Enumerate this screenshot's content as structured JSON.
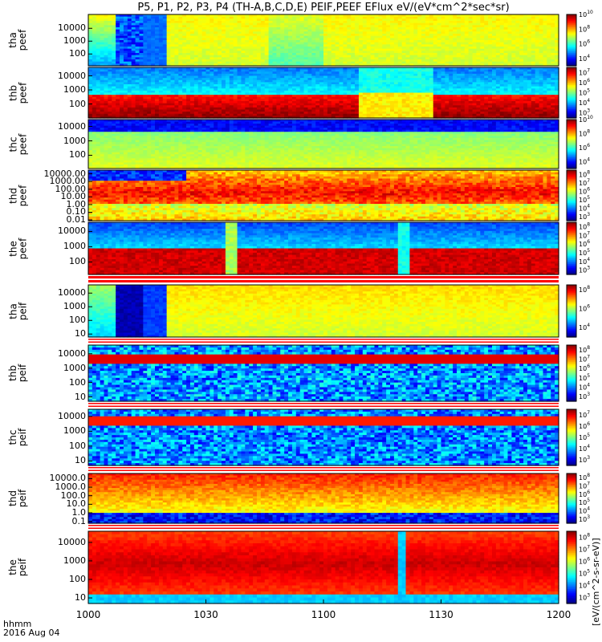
{
  "title": "P5, P1, P2, P3, P4 (TH-A,B,C,D,E) PEIF,PEEF EFlux eV/(eV*cm^2*sec*sr)",
  "colorbar_title": "[eV/(cm^2-s-sr-eV)]",
  "x_axis": {
    "ticks": [
      "1000",
      "1030",
      "1100",
      "1130",
      "1200"
    ],
    "ticks_minutes": [
      0,
      30,
      60,
      90,
      120
    ],
    "label_line1": "hhmm",
    "label_line2": "2016 Aug 04",
    "range_minutes": [
      0,
      120
    ]
  },
  "chart_data": [
    {
      "type": "heatmap",
      "name": "tha peef",
      "label": [
        "tha",
        "peef"
      ],
      "yscale": "log",
      "ytick_labels": [
        "10000",
        "1000",
        "100"
      ],
      "ytick_values": [
        10000,
        1000,
        100
      ],
      "colorbar_ticks": [
        "10^10",
        "10^8",
        "10^6",
        "10^4"
      ],
      "colorbar_log_range": [
        3,
        10
      ]
    },
    {
      "type": "heatmap",
      "name": "thb peef",
      "label": [
        "thb",
        "peef"
      ],
      "yscale": "log",
      "ytick_labels": [
        "10000",
        "1000",
        "100"
      ],
      "ytick_values": [
        10000,
        1000,
        100
      ],
      "colorbar_ticks": [
        "10^7",
        "10^6",
        "10^5",
        "10^4",
        "10^3"
      ],
      "colorbar_log_range": [
        2.5,
        7.5
      ]
    },
    {
      "type": "heatmap",
      "name": "thc peef",
      "label": [
        "thc",
        "peef"
      ],
      "yscale": "log",
      "ytick_labels": [
        "10000",
        "1000",
        "100"
      ],
      "ytick_values": [
        10000,
        1000,
        100
      ],
      "colorbar_ticks": [
        "10^10",
        "10^8",
        "10^6",
        "10^4"
      ],
      "colorbar_log_range": [
        3,
        10
      ]
    },
    {
      "type": "heatmap",
      "name": "thd peef",
      "label": [
        "thd",
        "peef"
      ],
      "yscale": "log",
      "ytick_labels": [
        "10000.00",
        "1000.00",
        "100.00",
        "10.00",
        "1.00",
        "0.10",
        "0.01"
      ],
      "ytick_values": [
        10000,
        1000,
        100,
        10,
        1,
        0.1,
        0.01
      ],
      "colorbar_ticks": [
        "10^8",
        "10^7",
        "10^6",
        "10^5",
        "10^4",
        "10^3"
      ],
      "colorbar_log_range": [
        2.5,
        8.5
      ]
    },
    {
      "type": "heatmap",
      "name": "the peef",
      "label": [
        "the",
        "peef"
      ],
      "yscale": "log",
      "ytick_labels": [
        "10000",
        "1000",
        "100"
      ],
      "ytick_values": [
        10000,
        1000,
        100
      ],
      "colorbar_ticks": [
        "10^8",
        "10^7",
        "10^6",
        "10^5",
        "10^4",
        "10^3"
      ],
      "colorbar_log_range": [
        2.5,
        8.5
      ]
    },
    {
      "type": "heatmap",
      "name": "tha peif",
      "label": [
        "tha",
        "peif"
      ],
      "yscale": "log",
      "ytick_labels": [
        "10000",
        "1000",
        "100",
        "10"
      ],
      "ytick_values": [
        10000,
        1000,
        100,
        10
      ],
      "colorbar_ticks": [
        "10^8",
        "10^6",
        "10^4"
      ],
      "colorbar_log_range": [
        3,
        8.5
      ]
    },
    {
      "type": "heatmap",
      "name": "thb peif",
      "label": [
        "thb",
        "peif"
      ],
      "yscale": "log",
      "ytick_labels": [
        "10000",
        "1000",
        "100",
        "10"
      ],
      "ytick_values": [
        10000,
        1000,
        100,
        10
      ],
      "colorbar_ticks": [
        "10^8",
        "10^7",
        "10^6",
        "10^5",
        "10^4",
        "10^3"
      ],
      "colorbar_log_range": [
        2.5,
        8.5
      ]
    },
    {
      "type": "heatmap",
      "name": "thc peif",
      "label": [
        "thc",
        "peif"
      ],
      "yscale": "log",
      "ytick_labels": [
        "10000",
        "1000",
        "100",
        "10"
      ],
      "ytick_values": [
        10000,
        1000,
        100,
        10
      ],
      "colorbar_ticks": [
        "10^7",
        "10^6",
        "10^5",
        "10^4",
        "10^3"
      ],
      "colorbar_log_range": [
        2.5,
        7.5
      ]
    },
    {
      "type": "heatmap",
      "name": "thd peif",
      "label": [
        "thd",
        "peif"
      ],
      "yscale": "log",
      "ytick_labels": [
        "10000.0",
        "1000.0",
        "100.0",
        "10.0",
        "1.0",
        "0.1"
      ],
      "ytick_values": [
        10000,
        1000,
        100,
        10,
        1,
        0.1
      ],
      "colorbar_ticks": [
        "10^8",
        "10^7",
        "10^6",
        "10^5",
        "10^4",
        "10^3"
      ],
      "colorbar_log_range": [
        2.5,
        8.5
      ]
    },
    {
      "type": "heatmap",
      "name": "the peif",
      "label": [
        "the",
        "peif"
      ],
      "yscale": "log",
      "ytick_labels": [
        "10000",
        "1000",
        "100",
        "10"
      ],
      "ytick_values": [
        10000,
        1000,
        100,
        10
      ],
      "colorbar_ticks": [
        "10^8",
        "10^7",
        "10^6",
        "10^5",
        "10^4",
        "10^3"
      ],
      "colorbar_log_range": [
        2.5,
        8.5
      ]
    }
  ]
}
